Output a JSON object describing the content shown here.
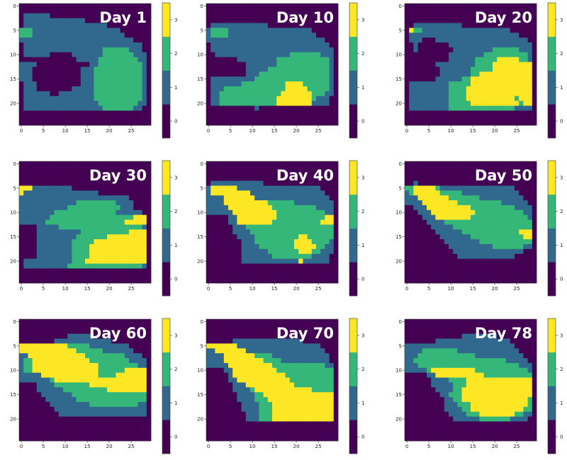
{
  "chart_data": {
    "type": "heatmap",
    "grid": {
      "rows": 25,
      "cols": 30
    },
    "xticks": [
      0,
      5,
      10,
      15,
      20,
      25
    ],
    "yticks": [
      0,
      5,
      10,
      15,
      20
    ],
    "colorbar": {
      "ticks": [
        0,
        1,
        2,
        3
      ],
      "colors": [
        "#440154",
        "#31688e",
        "#35b779",
        "#fde725"
      ]
    },
    "panels": [
      {
        "title": "Day 1",
        "rows": [
          "000000000000000000000000000000",
          "000000000000000000000000000000",
          "011111100000000000000000000000",
          "011111111111111000000000000000",
          "011111111111111111110000000000",
          "222111111111111111111110000000",
          "222111111111111111111111000000",
          "111111111111111111111111110000",
          "011111111111111111111111111100",
          "011111111111111111122222211100",
          "011111100000111111122222221110",
          "000000000000011111222222222110",
          "111100000000000011222222222210",
          "111000000000001112222222222210",
          "111000000000001112222222222210",
          "111000000000001112222222222210",
          "011100000000001112222222222210",
          "011100000000111112222222222210",
          "011111100111111112222222222210",
          "011111111111111112222222222210",
          "011111111111111111222222222110",
          "011111111111111111122222221100",
          "000000000000000000000000000000",
          "000000000000000000000000000000",
          "000000000000000000000000000000"
        ]
      },
      {
        "title": "Day 10",
        "rows": [
          "000000000000000000000000000000",
          "000000000000000000000000000000",
          "000000000000000000000000000000",
          "000000000000000000000000000000",
          "011111111111110000000000000000",
          "122221111111111111111111000000",
          "122221111111111111111111100000",
          "111111111111111111111111111000",
          "011111111111111111111111111100",
          "011111111111111111111111111110",
          "001111111111111111122222221110",
          "000000011111111122222222222210",
          "000000000111111122222222222210",
          "000000000111112222222222222210",
          "000000000111222222222222222210",
          "011111111112222222222222222210",
          "011111112222222222333322222210",
          "011122222222222222333332222210",
          "011222222222222223333333222110",
          "011222222222222233333333211100",
          "011222222222222233333333111100",
          "000000000001000000000000000000",
          "000000000000000000000000000000",
          "000000000000000000000000000000",
          "000000000000000000000000000000"
        ]
      },
      {
        "title": "Day 20",
        "rows": [
          "000000000000000000000000000000",
          "000000000000000000000000000000",
          "000000000000000000000000000000",
          "000000000000000000000000000000",
          "001111111111100000000000000000",
          "032211111111111111111111000000",
          "011111111111111111111111110000",
          "011100011111111111111111111100",
          "001000000011111111111111111110",
          "001000000001111111112222221110",
          "000000000011111111222222222210",
          "000000000011111122222333332210",
          "000000011111111122223333333330",
          "000000001111111222223333333330",
          "000000001111111223333333333330",
          "000000011111122333333333333330",
          "011111111122222333333333333330",
          "011111111122223333333333333330",
          "011111111122223333333333333330",
          "011111111122223333333333323330",
          "011111111122222333333333332330",
          "011111111122222222222222211110",
          "000000000000000000000000000000",
          "000000000000000000000000000000",
          "000000000000000000000000000000"
        ]
      },
      {
        "title": "Day 30",
        "rows": [
          "000000000000000000000000000000",
          "000000000000000000000000000000",
          "000000000000000000000000000000",
          "000000000000000000000000000000",
          "000000000000000000000000000000",
          "333111111111000000000000000000",
          "311111111111111111000000000000",
          "111111111111111111111111100000",
          "111111111111122222222211110000",
          "111111111112222222222221110000",
          "111111112222222222222211111100",
          "111111122222222222222222223330",
          "111111222222222222222222333330",
          "000011111222222222222222222210",
          "000011111111112222222222233330",
          "000011111111122222223333333330",
          "000011111111222223333333333330",
          "000011111111222233333333333330",
          "000011111111222233333333333330",
          "000011111111222233333333333330",
          "011111111111222333333333333330",
          "011111111112222222222222222210",
          "000000000000000000000000000000",
          "000000000000000000000000000000",
          "000000000000000000000000000000"
        ]
      },
      {
        "title": "Day 40",
        "rows": [
          "000000000000000000000000000000",
          "000000000000000000000000000000",
          "000000000000000000000000000000",
          "000000000000000000000000000000",
          "011111111111100000000000000000",
          "133333311111111111111111110000",
          "133333333311111111111111111000",
          "111133333331111111111111111100",
          "111133333333332222221111111110",
          "111113333333333222222222211110",
          "111111333333333322222222222110",
          "000001133333333322222222222330",
          "000001133333333222222222223330",
          "000000111222222222222222222220",
          "000000111122222222222222222220",
          "000000011112222222222332222220",
          "000000001112222222223333222210",
          "000000001111222222223333322110",
          "000000001111112222222333221110",
          "000000001111111222222222111100",
          "000000001111111111111311111100",
          "000000000000000000000000000000",
          "000000000000000000000000000000",
          "000000000000000000000000000000",
          "000000000000000000000000000000"
        ]
      },
      {
        "title": "Day 50",
        "rows": [
          "000000000000000000000000000000",
          "000000000000000000000000000000",
          "000000000000000000000000000000",
          "000000000000000000000000000000",
          "001000000000000000000000000000",
          "223333321111111111111111100000",
          "123333332222211111111111110000",
          "111333333322222221111111111000",
          "111133333333222222222211111100",
          "001113333333333222222222211110",
          "000111333333333322222222222110",
          "000011133333333222222222222210",
          "000001111222222222222222222220",
          "000000111112222222222222222220",
          "000000011111122222222222223330",
          "000000001111111222222222222330",
          "000000000111111112222222222220",
          "000000000011111111112222222110",
          "000000000001111111111111111000",
          "000000000000111111111111100000",
          "000000000000000000000000000000",
          "000000000000000000000000000000",
          "000000000000000000000000000000",
          "000000000000000000000000000000",
          "000000000000000000000000000000"
        ]
      },
      {
        "title": "Day 60",
        "rows": [
          "000000000000000000000000000000",
          "000000000000000000000000000000",
          "000000000000000000000000000000",
          "000000000001111110000000000000",
          "000000001111111111111000000000",
          "333333333332222211111111100000",
          "333333333333322222211111110000",
          "113333333333333222222222111100",
          "122333333333333322222222211110",
          "122333333333333333222222222110",
          "122333333333333333222222333330",
          "111113333333333333222233333330",
          "111111123333333333333333333330",
          "000011112222222233333333333330",
          "000011111122222222223333333330",
          "000001111111222222222222222220",
          "000000111111122222222222222220",
          "000000011111111122222222222110",
          "000000001111111111111111111110",
          "000000000111111111111111111110",
          "000000000000000000000000000000",
          "000000000000000000000000000000",
          "000000000000000000000000000000",
          "000000000000000000000000000000",
          "000000000000000000000000000000"
        ]
      },
      {
        "title": "Day 70",
        "rows": [
          "000000000000000000000000000000",
          "000000000000000000000000000000",
          "000000000000000000000000000000",
          "000000000000000000000000000000",
          "000000111111111111111100000000",
          "333333311111111111111111110000",
          "113333333111111111111111111000",
          "111133333332222111111111111100",
          "111133333333322221111111111100",
          "111113333333333222222222222110",
          "000011333333333322222222222220",
          "000001333333333333222222222220",
          "000001133333333333322222222220",
          "000000111333333333332222222220",
          "000000111123333333333333222220",
          "000000011112233333333333333330",
          "000000011112223333333333333330",
          "000000001111222333333333333330",
          "000000001111222333333333333330",
          "000000000111222333333333333330",
          "000000000111222333333333333330",
          "000000000000000000000000000000",
          "000000000000000000000000000000",
          "000000000000000000000000000000",
          "000000000000000000000000000000"
        ]
      },
      {
        "title": "Day 78",
        "rows": [
          "000000000000000000000000000000",
          "000000000000000000000000000000",
          "000000000000000000000000000000",
          "000000000000011111111000000000",
          "000000011111111111111111000000",
          "111111111111111111111111100000",
          "111122222222111111111111110000",
          "111222222222222211111111111000",
          "112222222222222222222221111100",
          "111222222222222222222222221110",
          "111112333333333322222222222210",
          "000001133333333333222222222220",
          "000000111122223333333333333330",
          "000000111112223333333333333330",
          "000000011112233333333333333330",
          "000000001122233333333333333330",
          "000000000112233333333333333320",
          "000000000111222333333333333320",
          "000000000111122333333333333220",
          "000000000011112223333333322110",
          "000000000001111112222222111100",
          "000000000000000000000000000000",
          "000000000000000000000000000000",
          "000000000000000000000000000000",
          "000000000000000000000000000000"
        ]
      }
    ]
  }
}
